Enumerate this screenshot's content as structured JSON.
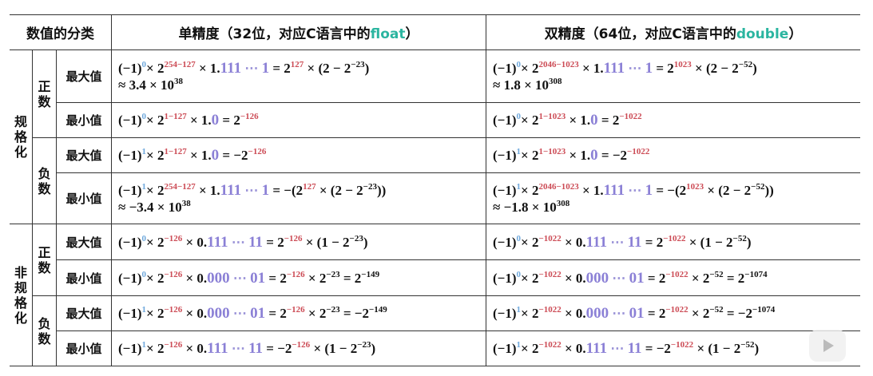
{
  "header": {
    "category": "数值的分类",
    "single_prefix": "单精度（32位，对应C语言中的",
    "single_type": "float",
    "single_suffix": "）",
    "double_prefix": "双精度（64位，对应C语言中的",
    "double_type": "double",
    "double_suffix": "）"
  },
  "groups": {
    "normalized": "规格化",
    "denormalized": "非规格化",
    "positive": "正数",
    "negative": "负数",
    "max": "最大值",
    "min": "最小值"
  },
  "colors": {
    "sign": "#6fa8dc",
    "exponent": "#cc4b55",
    "mantissa": "#8b80d6",
    "type": "#2bb5a0"
  },
  "rows": [
    {
      "single": [
        [
          "n",
          "(−1)"
        ],
        [
          "b",
          "0"
        ],
        [
          "n",
          "× 2"
        ],
        [
          "r",
          "254−127"
        ],
        [
          "n",
          " × 1."
        ],
        [
          "p",
          "111"
        ],
        [
          "g",
          " ⋯ "
        ],
        [
          "p",
          "1"
        ],
        [
          "n",
          " = 2"
        ],
        [
          "r",
          "127"
        ],
        [
          "n",
          " × (2 − 2"
        ],
        [
          "s",
          "−23"
        ],
        [
          "n",
          ")"
        ],
        [
          "br",
          ""
        ],
        [
          "n",
          "≈ 3.4 × 10"
        ],
        [
          "s",
          "38"
        ]
      ],
      "double": [
        [
          "n",
          "(−1)"
        ],
        [
          "b",
          "0"
        ],
        [
          "n",
          "× 2"
        ],
        [
          "r",
          "2046−1023"
        ],
        [
          "n",
          " × 1."
        ],
        [
          "p",
          "111"
        ],
        [
          "g",
          " ⋯ "
        ],
        [
          "p",
          "1"
        ],
        [
          "n",
          " = 2"
        ],
        [
          "r",
          "1023"
        ],
        [
          "n",
          " × (2 − 2"
        ],
        [
          "s",
          "−52"
        ],
        [
          "n",
          ")"
        ],
        [
          "br",
          ""
        ],
        [
          "n",
          "≈ 1.8 × 10"
        ],
        [
          "s",
          "308"
        ]
      ]
    },
    {
      "single": [
        [
          "n",
          "(−1)"
        ],
        [
          "b",
          "0"
        ],
        [
          "n",
          "× 2"
        ],
        [
          "r",
          "1−127"
        ],
        [
          "n",
          " × 1."
        ],
        [
          "p",
          "0"
        ],
        [
          "n",
          " = 2"
        ],
        [
          "r",
          "−126"
        ]
      ],
      "double": [
        [
          "n",
          "(−1)"
        ],
        [
          "b",
          "0"
        ],
        [
          "n",
          "× 2"
        ],
        [
          "r",
          "1−1023"
        ],
        [
          "n",
          " × 1."
        ],
        [
          "p",
          "0"
        ],
        [
          "n",
          " = 2"
        ],
        [
          "r",
          "−1022"
        ]
      ]
    },
    {
      "single": [
        [
          "n",
          "(−1)"
        ],
        [
          "b",
          "1"
        ],
        [
          "n",
          "× 2"
        ],
        [
          "r",
          "1−127"
        ],
        [
          "n",
          " × 1."
        ],
        [
          "p",
          "0"
        ],
        [
          "n",
          " = −2"
        ],
        [
          "r",
          "−126"
        ]
      ],
      "double": [
        [
          "n",
          "(−1)"
        ],
        [
          "b",
          "1"
        ],
        [
          "n",
          "× 2"
        ],
        [
          "r",
          "1−1023"
        ],
        [
          "n",
          " × 1."
        ],
        [
          "p",
          "0"
        ],
        [
          "n",
          " = −2"
        ],
        [
          "r",
          "−1022"
        ]
      ]
    },
    {
      "single": [
        [
          "n",
          "(−1)"
        ],
        [
          "b",
          "1"
        ],
        [
          "n",
          "× 2"
        ],
        [
          "r",
          "254−127"
        ],
        [
          "n",
          " × 1."
        ],
        [
          "p",
          "111"
        ],
        [
          "g",
          " ⋯ "
        ],
        [
          "p",
          "1"
        ],
        [
          "n",
          " = −(2"
        ],
        [
          "r",
          "127"
        ],
        [
          "n",
          " × (2 − 2"
        ],
        [
          "s",
          "−23"
        ],
        [
          "n",
          "))"
        ],
        [
          "br",
          ""
        ],
        [
          "n",
          "≈ −3.4 × 10"
        ],
        [
          "s",
          "38"
        ]
      ],
      "double": [
        [
          "n",
          "(−1)"
        ],
        [
          "b",
          "1"
        ],
        [
          "n",
          "× 2"
        ],
        [
          "r",
          "2046−1023"
        ],
        [
          "n",
          " × 1."
        ],
        [
          "p",
          "111"
        ],
        [
          "g",
          " ⋯ "
        ],
        [
          "p",
          "1"
        ],
        [
          "n",
          " = −(2"
        ],
        [
          "r",
          "1023"
        ],
        [
          "n",
          " × (2 − 2"
        ],
        [
          "s",
          "−52"
        ],
        [
          "n",
          "))"
        ],
        [
          "br",
          ""
        ],
        [
          "n",
          "≈ −1.8 × 10"
        ],
        [
          "s",
          "308"
        ]
      ]
    },
    {
      "single": [
        [
          "n",
          "(−1)"
        ],
        [
          "b",
          "0"
        ],
        [
          "n",
          "× 2"
        ],
        [
          "r",
          "−126"
        ],
        [
          "n",
          " × 0."
        ],
        [
          "p",
          "111"
        ],
        [
          "g",
          " ⋯ "
        ],
        [
          "p",
          "11"
        ],
        [
          "n",
          " = 2"
        ],
        [
          "r",
          "−126"
        ],
        [
          "n",
          " × (1 − 2"
        ],
        [
          "s",
          "−23"
        ],
        [
          "n",
          ")"
        ]
      ],
      "double": [
        [
          "n",
          "(−1)"
        ],
        [
          "b",
          "0"
        ],
        [
          "n",
          "× 2"
        ],
        [
          "r",
          "−1022"
        ],
        [
          "n",
          " × 0."
        ],
        [
          "p",
          "111"
        ],
        [
          "g",
          " ⋯ "
        ],
        [
          "p",
          "11"
        ],
        [
          "n",
          " = 2"
        ],
        [
          "r",
          "−1022"
        ],
        [
          "n",
          " × (1 − 2"
        ],
        [
          "s",
          "−52"
        ],
        [
          "n",
          ")"
        ]
      ]
    },
    {
      "single": [
        [
          "n",
          "(−1)"
        ],
        [
          "b",
          "0"
        ],
        [
          "n",
          "× 2"
        ],
        [
          "r",
          "−126"
        ],
        [
          "n",
          " × 0."
        ],
        [
          "p",
          "000"
        ],
        [
          "g",
          " ⋯ "
        ],
        [
          "p",
          "01"
        ],
        [
          "n",
          " = 2"
        ],
        [
          "r",
          "−126"
        ],
        [
          "n",
          " × 2"
        ],
        [
          "s",
          "−23"
        ],
        [
          "n",
          " = 2"
        ],
        [
          "s",
          "−149"
        ]
      ],
      "double": [
        [
          "n",
          "(−1)"
        ],
        [
          "b",
          "0"
        ],
        [
          "n",
          "× 2"
        ],
        [
          "r",
          "−1022"
        ],
        [
          "n",
          " × 0."
        ],
        [
          "p",
          "000"
        ],
        [
          "g",
          " ⋯ "
        ],
        [
          "p",
          "01"
        ],
        [
          "n",
          " = 2"
        ],
        [
          "r",
          "−1022"
        ],
        [
          "n",
          " × 2"
        ],
        [
          "s",
          "−52"
        ],
        [
          "n",
          " = 2"
        ],
        [
          "s",
          "−1074"
        ]
      ]
    },
    {
      "single": [
        [
          "n",
          " (−1)"
        ],
        [
          "b",
          "1"
        ],
        [
          "n",
          "× 2"
        ],
        [
          "r",
          "−126"
        ],
        [
          "n",
          " × 0."
        ],
        [
          "p",
          "000"
        ],
        [
          "g",
          " ⋯ "
        ],
        [
          "p",
          "01"
        ],
        [
          "n",
          " = 2"
        ],
        [
          "r",
          "−126"
        ],
        [
          "n",
          " × 2"
        ],
        [
          "s",
          "−23"
        ],
        [
          "n",
          " = −2"
        ],
        [
          "s",
          "−149"
        ]
      ],
      "double": [
        [
          "n",
          "(−1)"
        ],
        [
          "b",
          "1"
        ],
        [
          "n",
          "× 2"
        ],
        [
          "r",
          "−1022"
        ],
        [
          "n",
          " × 0."
        ],
        [
          "p",
          "000"
        ],
        [
          "g",
          " ⋯ "
        ],
        [
          "p",
          "01"
        ],
        [
          "n",
          " = 2"
        ],
        [
          "r",
          "−1022"
        ],
        [
          "n",
          " × 2"
        ],
        [
          "s",
          "−52"
        ],
        [
          "n",
          " = −2"
        ],
        [
          "s",
          "−1074"
        ]
      ]
    },
    {
      "single": [
        [
          "n",
          "(−1)"
        ],
        [
          "b",
          "1"
        ],
        [
          "n",
          "× 2"
        ],
        [
          "r",
          "−126"
        ],
        [
          "n",
          " × 0."
        ],
        [
          "p",
          "111"
        ],
        [
          "g",
          " ⋯ "
        ],
        [
          "p",
          "11"
        ],
        [
          "n",
          " = −2"
        ],
        [
          "r",
          "−126"
        ],
        [
          "n",
          " × (1 − 2"
        ],
        [
          "s",
          "−23"
        ],
        [
          "n",
          ")"
        ]
      ],
      "double": [
        [
          "n",
          "(−1)"
        ],
        [
          "b",
          "1"
        ],
        [
          "n",
          "× 2"
        ],
        [
          "r",
          "−1022"
        ],
        [
          "n",
          " × 0."
        ],
        [
          "p",
          "111"
        ],
        [
          "g",
          " ⋯ "
        ],
        [
          "p",
          "11"
        ],
        [
          "n",
          " = −2"
        ],
        [
          "r",
          "−1022"
        ],
        [
          "n",
          " × (1 − 2"
        ],
        [
          "s",
          "−52"
        ],
        [
          "n",
          ")"
        ]
      ]
    }
  ]
}
